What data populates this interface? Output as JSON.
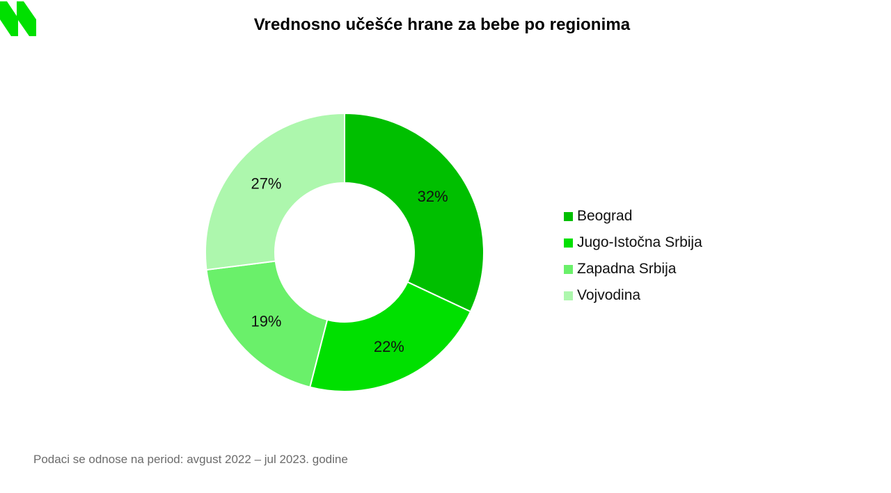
{
  "title": "Vrednosno učešće hrane za bebe po regionima",
  "footnote": "Podaci se odnose na period: avgust 2022 – jul 2023. godine",
  "logo": {
    "icon": "brand-logo-icon",
    "color": "#00e000"
  },
  "chart_data": {
    "type": "pie",
    "variant": "donut",
    "title": "Vrednosno učešće hrane za bebe po regionima",
    "legend_position": "right",
    "categories": [
      "Beograd",
      "Jugo-Istočna Srbija",
      "Zapadna Srbija",
      "Vojvodina"
    ],
    "values": [
      32,
      22,
      19,
      27
    ],
    "labels": [
      "32%",
      "22%",
      "19%",
      "27%"
    ],
    "colors": [
      "#00bf00",
      "#00e000",
      "#6af06a",
      "#adf7ad"
    ],
    "unit": "%"
  }
}
